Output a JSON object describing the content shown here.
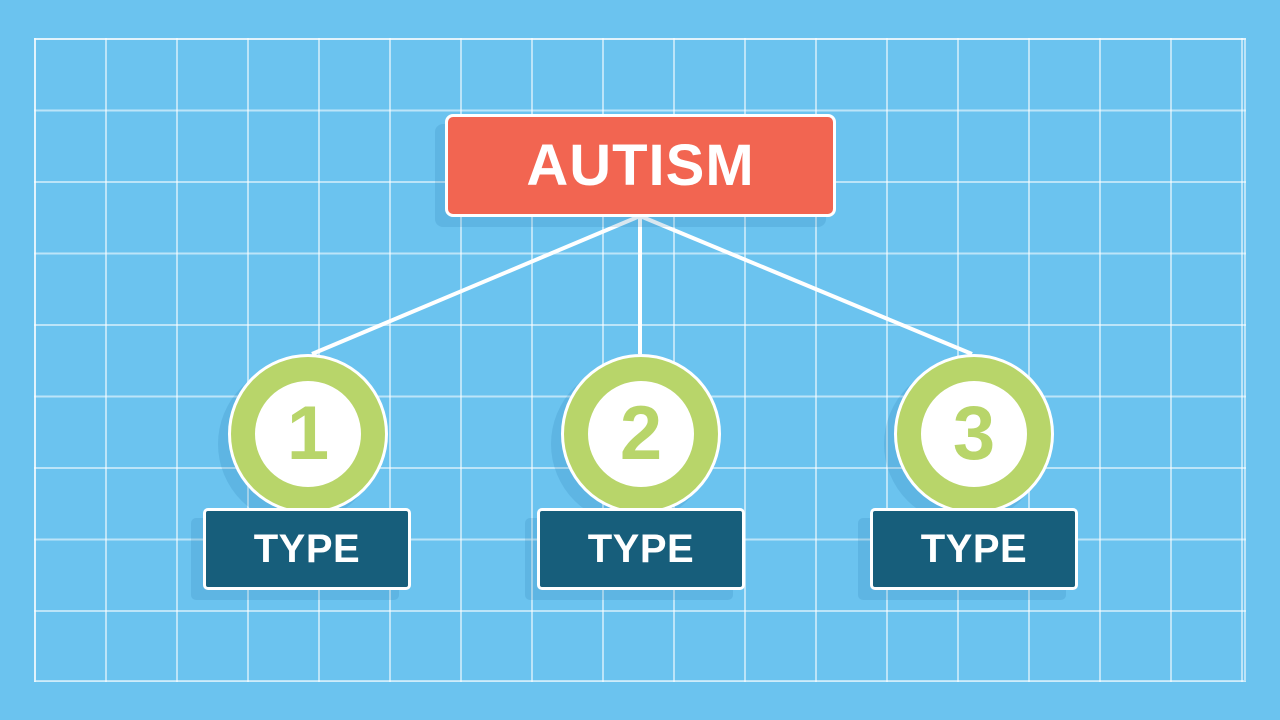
{
  "colors": {
    "background": "#6bc3ef",
    "grid_line": "#ffffff",
    "root_fill": "#f26551",
    "circle_ring": "#b8d56a",
    "number_color": "#b8d56a",
    "type_fill": "#175e7b",
    "connector": "#ffffff"
  },
  "root": {
    "label": "AUTISM"
  },
  "types": [
    {
      "number": "1",
      "label": "TYPE"
    },
    {
      "number": "2",
      "label": "TYPE"
    },
    {
      "number": "3",
      "label": "TYPE"
    }
  ]
}
